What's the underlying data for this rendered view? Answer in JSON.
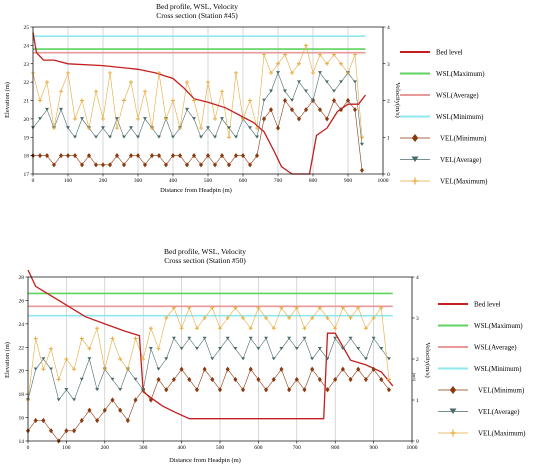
{
  "chart_data": [
    {
      "type": "line",
      "title": "Bed profile, WSL, Velocity",
      "subtitle": "Cross section (Station #45)",
      "xlabel": "Distance from Headpin (m)",
      "ylabel": "Elevation (m)",
      "y2label": "Velocity(m/s)",
      "xlim": [
        0,
        1000
      ],
      "ylim": [
        17,
        25
      ],
      "y2lim": [
        0,
        4
      ],
      "xticks": [
        "0",
        "100",
        "200",
        "300",
        "400",
        "500",
        "600",
        "700",
        "800",
        "900",
        "1000"
      ],
      "yticks": [
        "17",
        "18",
        "19",
        "20",
        "21",
        "22",
        "23",
        "24",
        "25"
      ],
      "y2ticks": [
        "0",
        "1",
        "2",
        "3",
        "4"
      ],
      "grid": "vertical",
      "legend_position": "right",
      "bed": {
        "name": "Bed level",
        "color": "#c41e1e",
        "x": [
          0,
          10,
          30,
          60,
          100,
          200,
          300,
          350,
          400,
          430,
          460,
          500,
          550,
          600,
          630,
          660,
          690,
          710,
          740,
          790,
          810,
          840,
          870,
          900,
          930,
          950
        ],
        "y": [
          24.7,
          23.6,
          23.2,
          23.2,
          23.0,
          22.9,
          22.7,
          22.5,
          22.2,
          21.7,
          21.1,
          20.9,
          20.6,
          20.1,
          19.8,
          19.3,
          18.2,
          17.4,
          17.0,
          17.0,
          19.1,
          19.5,
          20.4,
          20.8,
          20.8,
          21.3
        ]
      },
      "wsl": [
        {
          "name": "WSL(Maximum)",
          "color": "#5fd35f",
          "value": 23.8
        },
        {
          "name": "WSL(Average)",
          "color": "#e89a9a",
          "value": 23.6
        },
        {
          "name": "WSL(Minimum)",
          "color": "#8ee8ee",
          "value": 24.5
        }
      ],
      "vel": [
        {
          "name": "VEL(Minimum)",
          "color": "#8b3a0f",
          "marker": "diamond",
          "x": [
            0,
            20,
            40,
            60,
            80,
            100,
            120,
            140,
            160,
            180,
            200,
            220,
            240,
            260,
            280,
            300,
            320,
            340,
            360,
            380,
            400,
            420,
            440,
            460,
            480,
            500,
            520,
            540,
            560,
            580,
            600,
            620,
            640,
            660,
            680,
            700,
            720,
            740,
            760,
            780,
            800,
            820,
            840,
            860,
            880,
            900,
            920,
            940
          ],
          "y": [
            0.5,
            0.5,
            0.5,
            0.25,
            0.5,
            0.5,
            0.5,
            0.25,
            0.5,
            0.25,
            0.25,
            0.25,
            0.5,
            0.25,
            0.5,
            0.5,
            0.25,
            0.5,
            0.5,
            0.25,
            0.5,
            0.5,
            0.25,
            0.5,
            0.25,
            0.5,
            0.25,
            0.5,
            0.25,
            0.5,
            0.5,
            0.25,
            0.5,
            1.5,
            1.75,
            1.25,
            2.0,
            1.75,
            1.5,
            1.75,
            2.0,
            1.75,
            1.5,
            2.0,
            1.75,
            2.0,
            1.75,
            0.1
          ]
        },
        {
          "name": "VEL(Average)",
          "color": "#4a6b6b",
          "marker": "tri",
          "x": [
            0,
            20,
            40,
            60,
            80,
            100,
            120,
            140,
            160,
            180,
            200,
            220,
            240,
            260,
            280,
            300,
            320,
            340,
            360,
            380,
            400,
            420,
            440,
            460,
            480,
            500,
            520,
            540,
            560,
            580,
            600,
            620,
            640,
            660,
            680,
            700,
            720,
            740,
            760,
            780,
            800,
            820,
            840,
            860,
            880,
            900,
            920,
            940
          ],
          "y": [
            1.25,
            1.5,
            1.75,
            1.25,
            1.75,
            1.25,
            1.0,
            1.5,
            1.25,
            1.0,
            1.25,
            1.0,
            1.5,
            1.0,
            1.25,
            1.0,
            1.5,
            1.25,
            1.0,
            1.5,
            1.0,
            1.25,
            1.75,
            1.5,
            1.0,
            1.25,
            1.0,
            1.5,
            1.25,
            1.0,
            1.5,
            1.25,
            1.0,
            2.0,
            2.25,
            2.75,
            2.25,
            2.0,
            2.5,
            2.25,
            2.0,
            2.75,
            2.5,
            2.25,
            2.5,
            2.75,
            2.5,
            0.8
          ]
        },
        {
          "name": "VEL(Maximum)",
          "color": "#e8a93a",
          "marker": "plus",
          "x": [
            0,
            20,
            40,
            60,
            80,
            100,
            120,
            140,
            160,
            180,
            200,
            220,
            240,
            260,
            280,
            300,
            320,
            340,
            360,
            380,
            400,
            420,
            440,
            460,
            480,
            500,
            520,
            540,
            560,
            580,
            600,
            620,
            640,
            660,
            680,
            700,
            720,
            740,
            760,
            780,
            800,
            820,
            840,
            860,
            880,
            900,
            920,
            940
          ],
          "y": [
            2.75,
            2.0,
            2.5,
            1.25,
            2.25,
            2.75,
            1.5,
            2.0,
            1.25,
            2.25,
            1.5,
            2.75,
            1.25,
            2.0,
            2.5,
            1.5,
            2.25,
            1.25,
            2.75,
            1.5,
            2.0,
            1.25,
            2.5,
            2.0,
            1.25,
            2.5,
            1.5,
            2.25,
            1.0,
            2.75,
            1.5,
            2.0,
            1.25,
            3.25,
            2.75,
            3.0,
            3.25,
            2.75,
            3.0,
            3.5,
            2.75,
            3.25,
            3.0,
            3.25,
            3.0,
            2.75,
            3.25,
            1.0
          ]
        }
      ]
    },
    {
      "type": "line",
      "title": "Bed profile, WSL, Velocity",
      "subtitle": "Cross section (Station #50)",
      "xlabel": "Distance from Headpin (m)",
      "ylabel": "Elevation (m)",
      "y2label": "Velocity(m/s)",
      "y2note": "(m/s)",
      "xlim": [
        0,
        1000
      ],
      "ylim": [
        14,
        28
      ],
      "y2lim": [
        0,
        4
      ],
      "xticks": [
        "0",
        "100",
        "200",
        "300",
        "400",
        "500",
        "600",
        "700",
        "800",
        "900",
        "1000"
      ],
      "yticks": [
        "14",
        "16",
        "18",
        "20",
        "22",
        "24",
        "26",
        "28"
      ],
      "y2ticks": [
        "0",
        "1",
        "2",
        "3",
        "4"
      ],
      "grid": "vertical",
      "legend_position": "right",
      "bed": {
        "name": "Bed level",
        "color": "#c41e1e",
        "x": [
          0,
          20,
          40,
          60,
          100,
          150,
          200,
          250,
          290,
          300,
          320,
          350,
          380,
          420,
          500,
          600,
          700,
          770,
          780,
          800,
          840,
          880,
          920,
          950
        ],
        "y": [
          28.6,
          27.2,
          26.8,
          26.4,
          25.6,
          24.6,
          24.0,
          23.4,
          23.0,
          18.2,
          17.7,
          17.0,
          16.5,
          15.9,
          15.9,
          15.9,
          15.9,
          15.9,
          23.2,
          23.2,
          20.9,
          20.5,
          19.9,
          18.7
        ]
      },
      "wsl": [
        {
          "name": "WSL(Maximum)",
          "color": "#5fd35f",
          "value": 26.6
        },
        {
          "name": "WSL(Average)",
          "color": "#e89a9a",
          "value": 25.5
        },
        {
          "name": "WSL(Minimum)",
          "color": "#8ee8ee",
          "value": 24.7
        }
      ],
      "vel": [
        {
          "name": "VEL(Minimum)",
          "color": "#8b3a0f",
          "marker": "diamond",
          "x": [
            0,
            20,
            40,
            60,
            80,
            100,
            120,
            140,
            160,
            180,
            200,
            220,
            240,
            260,
            280,
            300,
            320,
            340,
            360,
            380,
            400,
            420,
            440,
            460,
            480,
            500,
            520,
            540,
            560,
            580,
            600,
            620,
            640,
            660,
            680,
            700,
            720,
            740,
            760,
            780,
            800,
            820,
            840,
            860,
            880,
            900,
            920,
            940
          ],
          "y": [
            0.25,
            0.5,
            0.5,
            0.25,
            0.0,
            0.25,
            0.25,
            0.5,
            0.75,
            0.5,
            0.75,
            1.0,
            0.75,
            0.5,
            1.0,
            1.25,
            1.0,
            1.5,
            1.25,
            1.5,
            1.75,
            1.5,
            1.25,
            1.75,
            1.5,
            1.25,
            1.75,
            1.5,
            1.25,
            1.75,
            1.5,
            1.25,
            1.5,
            1.75,
            1.25,
            1.5,
            1.25,
            1.75,
            1.5,
            1.25,
            1.5,
            1.75,
            1.5,
            1.75,
            1.5,
            1.75,
            1.5,
            1.25
          ]
        },
        {
          "name": "VEL(Average)",
          "color": "#4a6b6b",
          "marker": "tri",
          "x": [
            0,
            20,
            40,
            60,
            80,
            100,
            120,
            140,
            160,
            180,
            200,
            220,
            240,
            260,
            280,
            300,
            320,
            340,
            360,
            380,
            400,
            420,
            440,
            460,
            480,
            500,
            520,
            540,
            560,
            580,
            600,
            620,
            640,
            660,
            680,
            700,
            720,
            740,
            760,
            780,
            800,
            820,
            840,
            860,
            880,
            900,
            920,
            940
          ],
          "y": [
            1.0,
            1.75,
            2.0,
            1.75,
            1.0,
            1.25,
            1.0,
            1.5,
            2.0,
            1.25,
            1.75,
            1.5,
            1.25,
            1.75,
            1.5,
            1.25,
            2.25,
            1.75,
            2.0,
            2.5,
            2.25,
            2.5,
            2.25,
            2.5,
            2.0,
            2.25,
            2.5,
            2.25,
            2.0,
            2.5,
            2.25,
            2.5,
            2.0,
            2.25,
            2.5,
            2.25,
            2.5,
            2.0,
            2.25,
            2.0,
            2.5,
            2.25,
            2.5,
            2.25,
            2.0,
            2.5,
            2.25,
            2.0
          ]
        },
        {
          "name": "VEL(Maximum)",
          "color": "#e8a93a",
          "marker": "plus",
          "x": [
            0,
            20,
            40,
            60,
            80,
            100,
            120,
            140,
            160,
            180,
            200,
            220,
            240,
            260,
            280,
            300,
            320,
            340,
            360,
            380,
            400,
            420,
            440,
            460,
            480,
            500,
            520,
            540,
            560,
            580,
            600,
            620,
            640,
            660,
            680,
            700,
            720,
            740,
            760,
            780,
            800,
            820,
            840,
            860,
            880,
            900,
            920,
            940
          ],
          "y": [
            1.0,
            2.5,
            1.75,
            2.25,
            1.5,
            2.0,
            1.75,
            2.5,
            2.25,
            2.75,
            1.75,
            2.5,
            2.0,
            1.75,
            2.5,
            2.0,
            2.75,
            2.25,
            3.0,
            3.25,
            2.75,
            3.25,
            2.75,
            3.0,
            3.25,
            2.75,
            3.0,
            3.25,
            3.0,
            2.75,
            3.25,
            3.0,
            2.75,
            3.25,
            3.0,
            3.25,
            2.75,
            3.0,
            3.25,
            3.0,
            2.75,
            3.25,
            3.0,
            3.25,
            2.75,
            3.0,
            3.25,
            1.5
          ]
        }
      ]
    }
  ]
}
